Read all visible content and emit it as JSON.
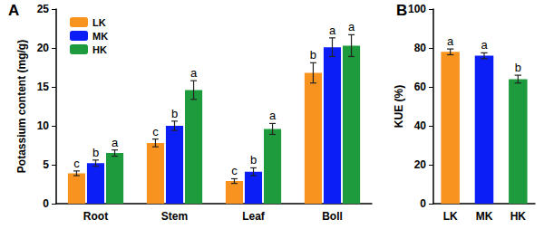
{
  "chart_data": [
    {
      "type": "bar",
      "title": "A",
      "ylabel": "Potassium content (mg/g)",
      "categories": [
        "Root",
        "Stem",
        "Leaf",
        "Boll"
      ],
      "series": [
        {
          "name": "LK",
          "color": "#f7931e",
          "values": [
            3.9,
            7.8,
            2.9,
            16.8
          ],
          "errors": [
            0.3,
            0.5,
            0.3,
            1.3
          ],
          "letters": [
            "c",
            "c",
            "c",
            "b"
          ]
        },
        {
          "name": "MK",
          "color": "#0a1ef5",
          "values": [
            5.2,
            10.0,
            4.1,
            20.1
          ],
          "errors": [
            0.4,
            0.6,
            0.5,
            1.2
          ],
          "letters": [
            "b",
            "b",
            "b",
            "a"
          ]
        },
        {
          "name": "HK",
          "color": "#1e9b3c",
          "values": [
            6.5,
            14.6,
            9.6,
            20.3
          ],
          "errors": [
            0.4,
            1.2,
            0.7,
            1.4
          ],
          "letters": [
            "a",
            "a",
            "a",
            "a"
          ]
        }
      ],
      "ylim": [
        0,
        25
      ],
      "yticks": [
        0,
        5,
        10,
        15,
        20,
        25
      ],
      "legend": "upper left",
      "grid": false
    },
    {
      "type": "bar",
      "title": "B",
      "ylabel": "KUE (%)",
      "categories": [
        "LK",
        "MK",
        "HK"
      ],
      "values": [
        78,
        76,
        64
      ],
      "errors": [
        1.5,
        1.5,
        2.0
      ],
      "letters": [
        "a",
        "a",
        "b"
      ],
      "colors": [
        "#f7931e",
        "#0a1ef5",
        "#1e9b3c"
      ],
      "ylim": [
        0,
        100
      ],
      "yticks": [
        0,
        20,
        40,
        60,
        80,
        100
      ],
      "grid": false
    }
  ]
}
